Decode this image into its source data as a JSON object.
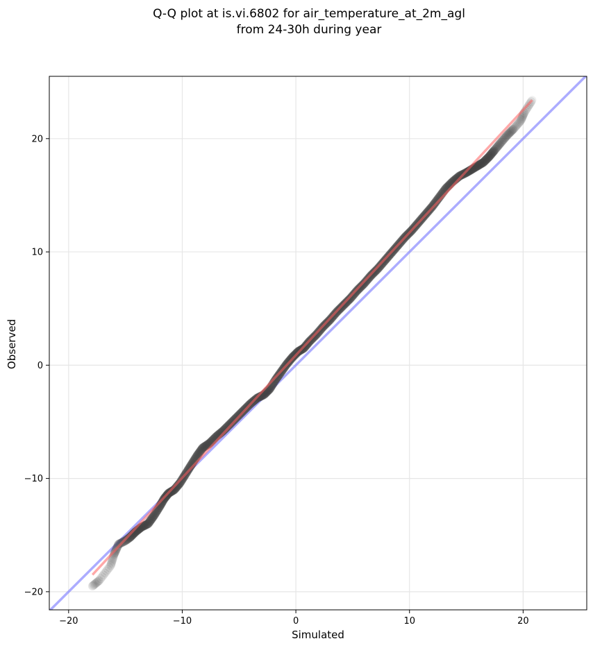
{
  "chart_data": {
    "type": "scatter",
    "title_line1": "Q-Q plot at is.vi.6802 for air_temperature_at_2m_agl",
    "title_line2": "from 24-30h during year",
    "xlabel": "Simulated",
    "ylabel": "Observed",
    "xlim": [
      -21.7,
      25.6
    ],
    "ylim": [
      -21.6,
      25.5
    ],
    "xticks": [
      -20,
      -10,
      0,
      10,
      20
    ],
    "yticks": [
      -20,
      -10,
      0,
      10,
      20
    ],
    "xtick_labels": [
      "−20",
      "−10",
      "0",
      "10",
      "20"
    ],
    "ytick_labels": [
      "−20",
      "−10",
      "0",
      "10",
      "20"
    ],
    "grid": true,
    "series": [
      {
        "kind": "quantile-points",
        "color": "#404040",
        "points": [
          [
            -17.9,
            -19.5
          ],
          [
            -17.3,
            -19.0
          ],
          [
            -16.3,
            -17.7
          ],
          [
            -16.0,
            -16.7
          ],
          [
            -15.6,
            -15.8
          ],
          [
            -15.0,
            -15.5
          ],
          [
            -14.6,
            -15.2
          ],
          [
            -14.1,
            -14.7
          ],
          [
            -13.6,
            -14.3
          ],
          [
            -13.0,
            -14.0
          ],
          [
            -12.5,
            -13.3
          ],
          [
            -12.0,
            -12.5
          ],
          [
            -11.6,
            -11.8
          ],
          [
            -11.2,
            -11.3
          ],
          [
            -10.7,
            -11.0
          ],
          [
            -10.2,
            -10.4
          ],
          [
            -9.7,
            -9.6
          ],
          [
            -9.2,
            -8.8
          ],
          [
            -8.7,
            -8.0
          ],
          [
            -8.2,
            -7.3
          ],
          [
            -7.6,
            -6.9
          ],
          [
            -7.0,
            -6.3
          ],
          [
            -6.4,
            -5.8
          ],
          [
            -5.8,
            -5.2
          ],
          [
            -5.2,
            -4.6
          ],
          [
            -4.6,
            -4.0
          ],
          [
            -4.0,
            -3.4
          ],
          [
            -3.4,
            -2.9
          ],
          [
            -2.8,
            -2.6
          ],
          [
            -2.3,
            -2.1
          ],
          [
            -1.8,
            -1.3
          ],
          [
            -1.3,
            -0.6
          ],
          [
            -0.8,
            0.1
          ],
          [
            -0.3,
            0.7
          ],
          [
            0.2,
            1.2
          ],
          [
            0.7,
            1.5
          ],
          [
            1.2,
            2.1
          ],
          [
            1.8,
            2.7
          ],
          [
            2.4,
            3.4
          ],
          [
            3.0,
            4.0
          ],
          [
            3.6,
            4.7
          ],
          [
            4.2,
            5.3
          ],
          [
            4.8,
            5.9
          ],
          [
            5.4,
            6.6
          ],
          [
            6.0,
            7.2
          ],
          [
            6.6,
            7.9
          ],
          [
            7.2,
            8.5
          ],
          [
            7.8,
            9.2
          ],
          [
            8.4,
            9.9
          ],
          [
            9.0,
            10.6
          ],
          [
            9.6,
            11.3
          ],
          [
            10.2,
            11.9
          ],
          [
            10.8,
            12.6
          ],
          [
            11.4,
            13.3
          ],
          [
            12.0,
            14.0
          ],
          [
            12.6,
            14.8
          ],
          [
            13.2,
            15.6
          ],
          [
            13.8,
            16.2
          ],
          [
            14.4,
            16.7
          ],
          [
            15.0,
            17.0
          ],
          [
            15.5,
            17.3
          ],
          [
            16.0,
            17.6
          ],
          [
            16.5,
            17.9
          ],
          [
            17.0,
            18.4
          ],
          [
            17.5,
            19.0
          ],
          [
            18.0,
            19.6
          ],
          [
            18.6,
            20.3
          ],
          [
            19.2,
            20.9
          ],
          [
            19.8,
            21.6
          ],
          [
            20.1,
            22.3
          ],
          [
            20.8,
            23.4
          ]
        ]
      },
      {
        "kind": "identity-line",
        "color": "#8080ff"
      },
      {
        "kind": "fit-line",
        "color": "#ff6060",
        "x": [
          -17.9,
          20.8
        ],
        "y": [
          -18.5,
          23.4
        ]
      }
    ]
  }
}
